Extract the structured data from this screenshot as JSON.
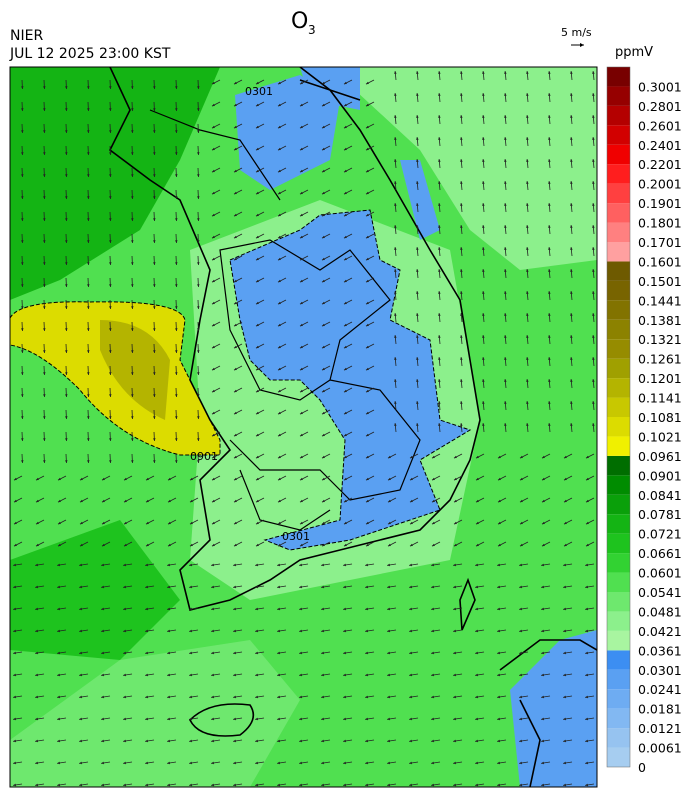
{
  "header": {
    "title": "O",
    "title_subscript": "3",
    "source": "NIER",
    "datetime": "JUL 12 2025 23:00 KST",
    "wind_scale": "5 m/s",
    "unit": "ppmV"
  },
  "map": {
    "contour_labels": [
      "0301",
      "0901"
    ]
  },
  "colorbar": {
    "ticks": [
      0,
      0.0061,
      0.0121,
      0.0181,
      0.0241,
      0.0301,
      0.0361,
      0.0421,
      0.0481,
      0.0541,
      0.0601,
      0.0661,
      0.0721,
      0.0781,
      0.0841,
      0.0901,
      0.0961,
      0.1021,
      0.1081,
      0.1141,
      0.1201,
      0.1261,
      0.1321,
      0.1381,
      0.1441,
      0.1501,
      0.1601,
      0.1701,
      0.1801,
      0.1901,
      0.2001,
      0.2201,
      0.2401,
      0.2601,
      0.2801,
      0.3001
    ],
    "colors": [
      "#a6cdf0",
      "#96c3f0",
      "#82b8f2",
      "#6eacf2",
      "#5aa0f2",
      "#3c8ef2",
      "#a8f5a0",
      "#8cf08c",
      "#6ee86e",
      "#50e050",
      "#32d232",
      "#1ec31e",
      "#14b414",
      "#0aa00a",
      "#008c00",
      "#006e00",
      "#f0f000",
      "#dcdc00",
      "#c8c800",
      "#b4b400",
      "#a0a000",
      "#968c00",
      "#8c8200",
      "#827300",
      "#786400",
      "#6e5a00",
      "#ffa0a0",
      "#ff8080",
      "#ff6060",
      "#ff4040",
      "#ff1e1e",
      "#f00000",
      "#d20000",
      "#b40000",
      "#960000",
      "#780000"
    ]
  }
}
